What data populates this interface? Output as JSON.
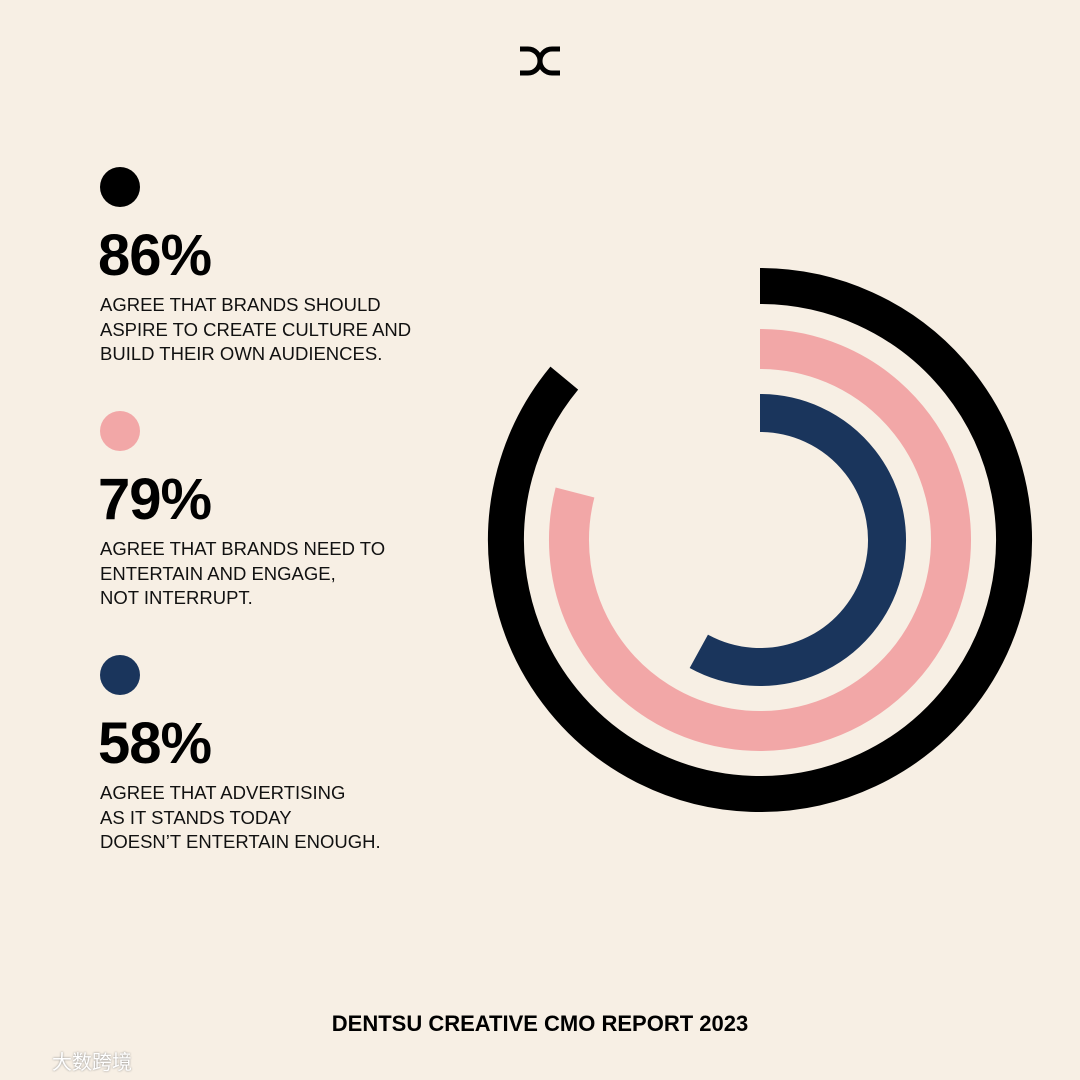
{
  "chart_data": {
    "type": "radial-bar",
    "title": "DENTSU CREATIVE CMO REPORT 2023",
    "categories": [
      "AGREE THAT BRANDS SHOULD\nASPIRE TO CREATE CULTURE AND\nBUILD THEIR OWN AUDIENCES.",
      "AGREE THAT BRANDS NEED TO\nENTERTAIN AND ENGAGE,\nNOT INTERRUPT.",
      "AGREE THAT ADVERTISING\nAS IT STANDS TODAY\nDOESN’T ENTERTAIN ENOUGH."
    ],
    "values": [
      86,
      79,
      58
    ],
    "value_labels": [
      "86%",
      "79%",
      "58%"
    ],
    "colors": [
      "#000000",
      "#f2a7a7",
      "#1a355c"
    ],
    "ylim": [
      0,
      100
    ]
  },
  "watermark": "大数跨境"
}
